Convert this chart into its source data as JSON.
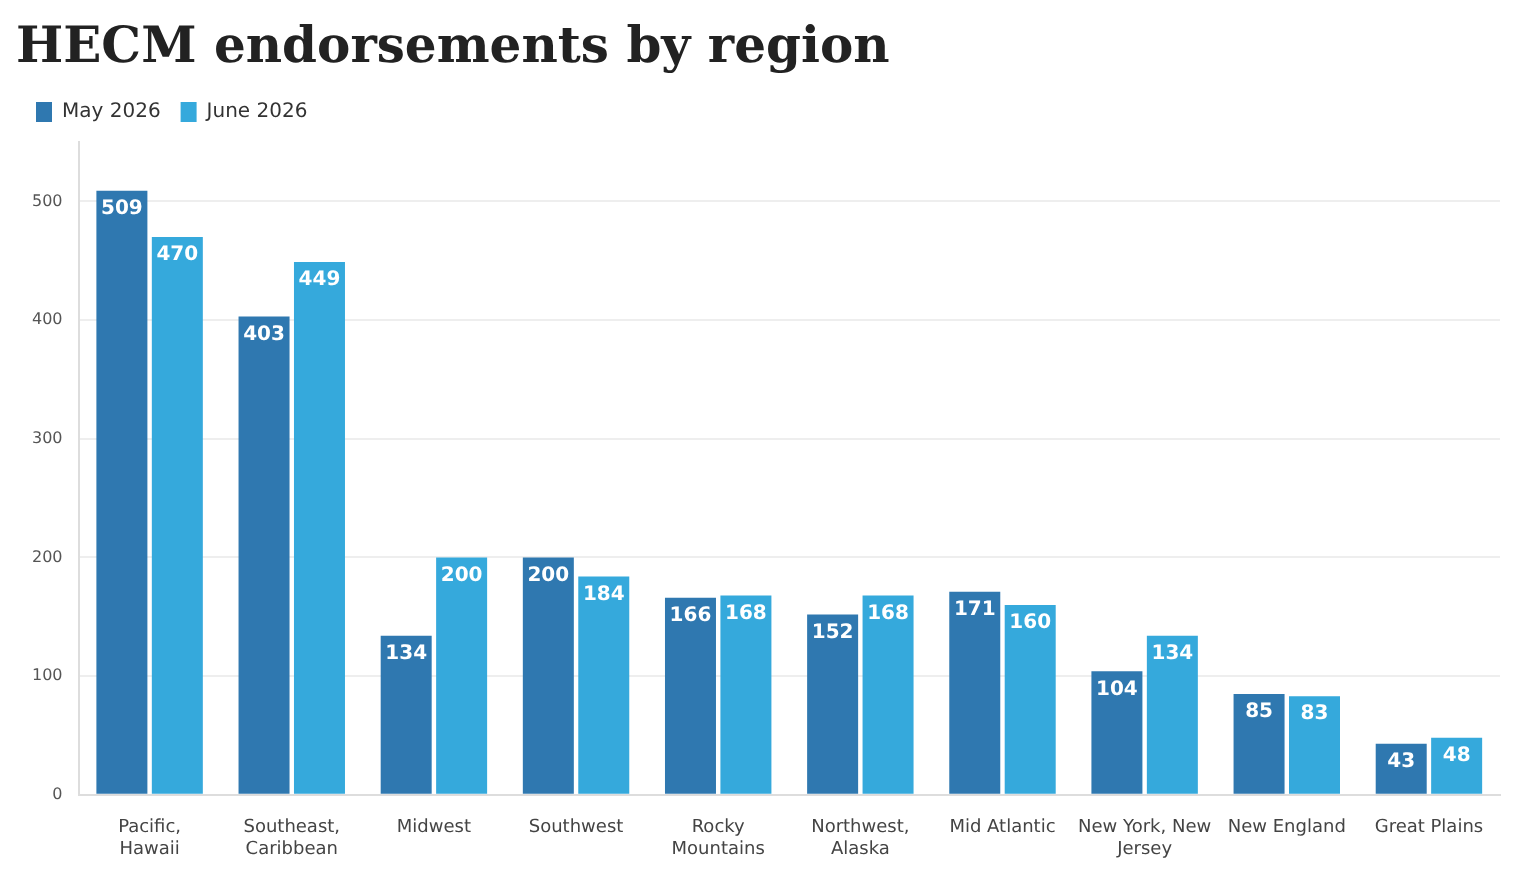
{
  "chart_data": {
    "type": "bar",
    "title": "HECM endorsements by region",
    "categories": [
      "Pacific, Hawaii",
      "Southeast, Caribbean",
      "Midwest",
      "Southwest",
      "Rocky Mountains",
      "Northwest, Alaska",
      "Mid Atlantic",
      "New York, New Jersey",
      "New England",
      "Great Plains"
    ],
    "series": [
      {
        "name": "May 2026",
        "color": "#2f78b0",
        "values": [
          509,
          403,
          134,
          200,
          166,
          152,
          171,
          104,
          85,
          43
        ]
      },
      {
        "name": "June 2026",
        "color": "#35a9dc",
        "values": [
          470,
          449,
          200,
          184,
          168,
          168,
          160,
          134,
          83,
          48
        ]
      }
    ],
    "ylim": [
      0,
      550
    ],
    "yticks": [
      0,
      100,
      200,
      300,
      400,
      500
    ],
    "grid": "y",
    "legend": "top left",
    "data_labels": true
  }
}
